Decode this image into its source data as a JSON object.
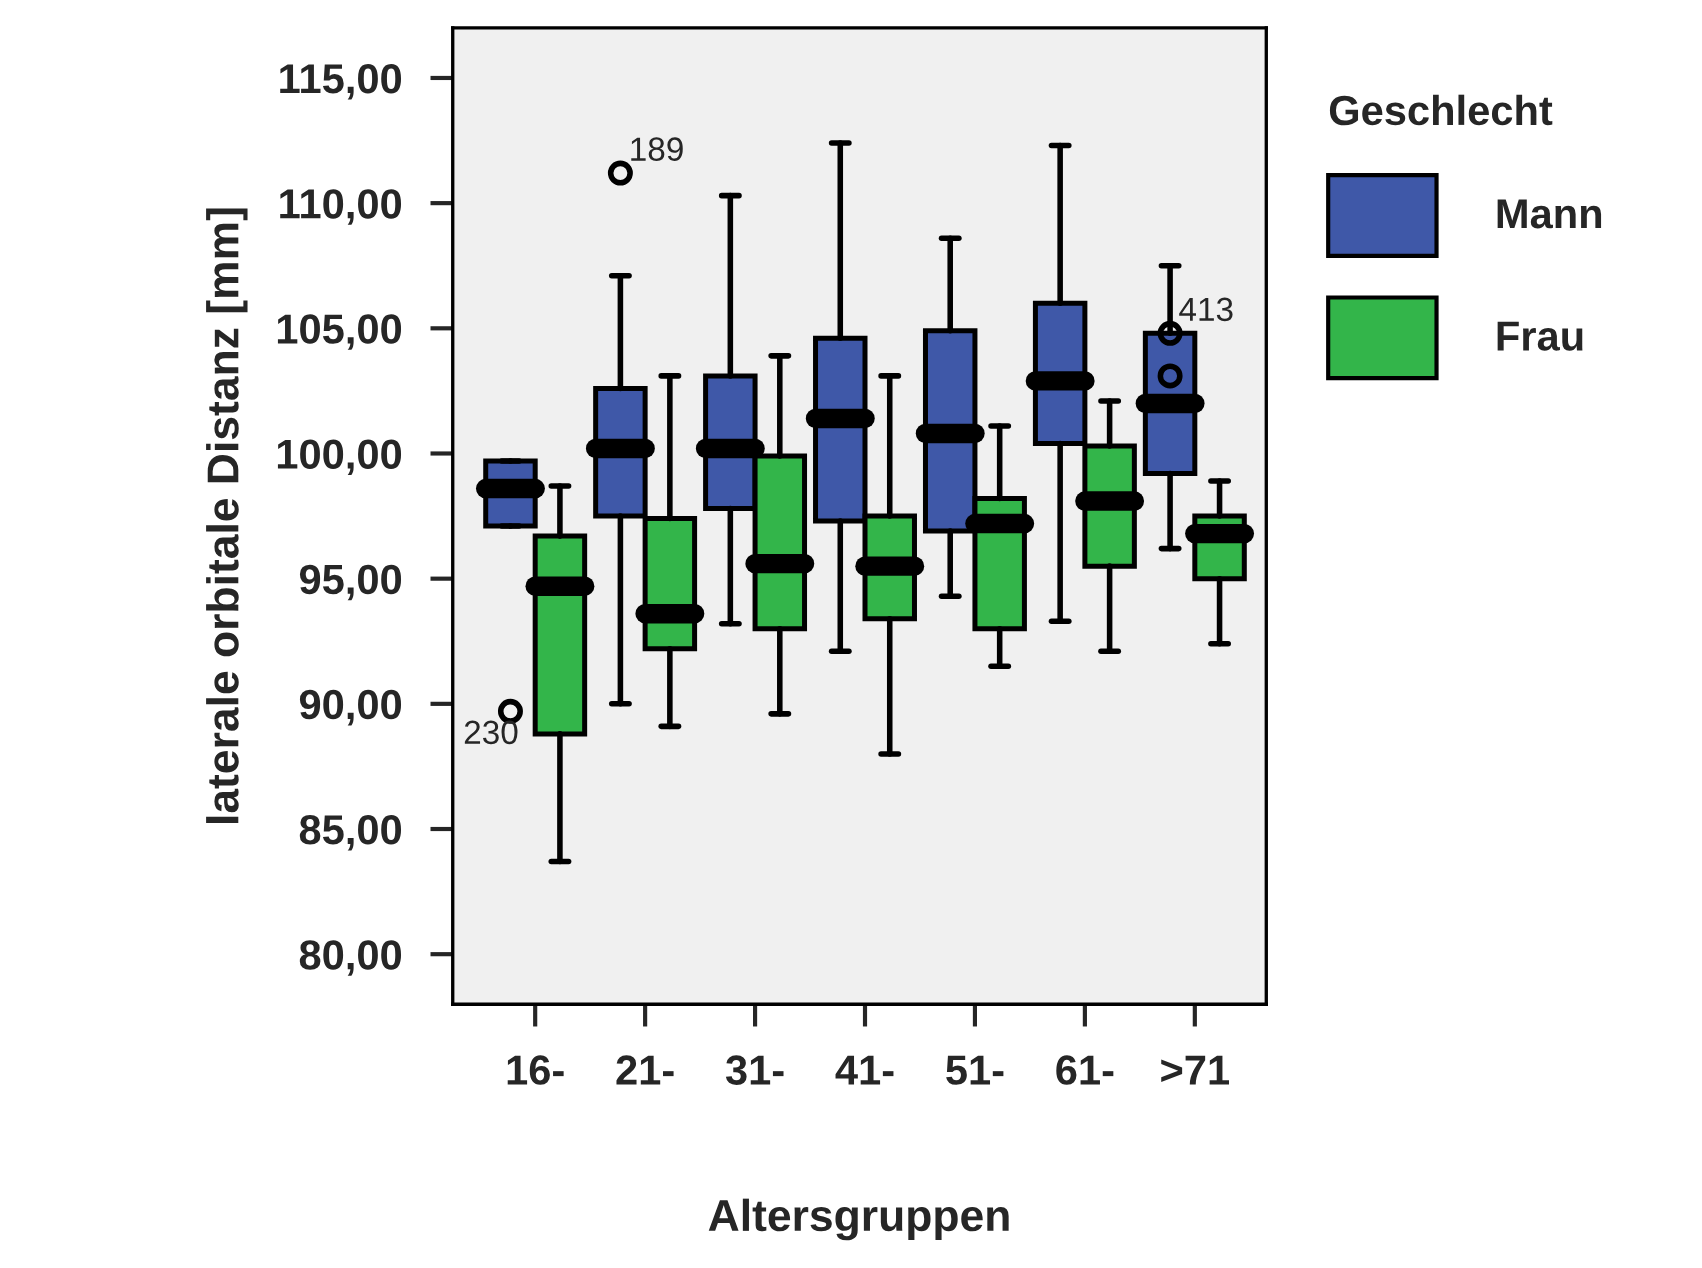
{
  "chart_data": {
    "type": "box",
    "xlabel": "Altersgruppen",
    "ylabel": "laterale orbitale Distanz [mm]",
    "legend_title": "Geschlecht",
    "legend": "right",
    "categories": [
      "16-",
      "21-",
      "31-",
      "41-",
      "51-",
      "61-",
      ">71"
    ],
    "ylim": [
      78,
      117
    ],
    "yticks": [
      {
        "value": 80,
        "label": "80,00"
      },
      {
        "value": 85,
        "label": "85,00"
      },
      {
        "value": 90,
        "label": "90,00"
      },
      {
        "value": 95,
        "label": "95,00"
      },
      {
        "value": 100,
        "label": "100,00"
      },
      {
        "value": 105,
        "label": "105,00"
      },
      {
        "value": 110,
        "label": "110,00"
      },
      {
        "value": 115,
        "label": "115,00"
      }
    ],
    "series": [
      {
        "name": "Mann",
        "color": "#3f58a8",
        "boxes": [
          {
            "low": 97.1,
            "q1": 97.1,
            "median": 98.6,
            "q3": 99.7,
            "high": 99.7,
            "outliers": [
              89.7
            ]
          },
          {
            "low": 90.0,
            "q1": 97.5,
            "median": 100.2,
            "q3": 102.6,
            "high": 107.1,
            "outliers": [
              111.2
            ]
          },
          {
            "low": 93.2,
            "q1": 97.8,
            "median": 100.2,
            "q3": 103.1,
            "high": 110.3
          },
          {
            "low": 92.1,
            "q1": 97.3,
            "median": 101.4,
            "q3": 104.6,
            "high": 112.4
          },
          {
            "low": 94.3,
            "q1": 96.9,
            "median": 100.8,
            "q3": 104.9,
            "high": 108.6
          },
          {
            "low": 93.3,
            "q1": 100.4,
            "median": 102.9,
            "q3": 106.0,
            "high": 112.3
          },
          {
            "low": 96.2,
            "q1": 99.2,
            "median": 102.0,
            "q3": 104.8,
            "high": 107.5,
            "outliers": [
              104.8,
              103.1
            ]
          }
        ]
      },
      {
        "name": "Frau",
        "color": "#33b54a",
        "boxes": [
          {
            "low": 83.7,
            "q1": 88.8,
            "median": 94.7,
            "q3": 96.7,
            "high": 98.7
          },
          {
            "low": 89.1,
            "q1": 92.2,
            "median": 93.6,
            "q3": 97.4,
            "high": 103.1
          },
          {
            "low": 89.6,
            "q1": 93.0,
            "median": 95.6,
            "q3": 99.9,
            "high": 103.9
          },
          {
            "low": 88.0,
            "q1": 93.4,
            "median": 95.5,
            "q3": 97.5,
            "high": 103.1
          },
          {
            "low": 91.5,
            "q1": 93.0,
            "median": 97.2,
            "q3": 98.2,
            "high": 101.1
          },
          {
            "low": 92.1,
            "q1": 95.5,
            "median": 98.1,
            "q3": 100.3,
            "high": 102.1
          },
          {
            "low": 92.4,
            "q1": 95.0,
            "median": 96.8,
            "q3": 97.5,
            "high": 98.9
          }
        ]
      }
    ],
    "annotations": [
      "230",
      "189",
      "413"
    ]
  }
}
